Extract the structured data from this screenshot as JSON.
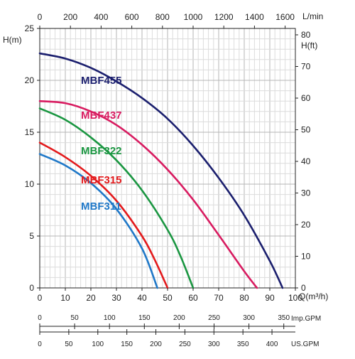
{
  "chart_data": {
    "type": "line",
    "x_range": [
      0,
      100
    ],
    "y_range": [
      0,
      25
    ],
    "x_ticks": [
      0,
      10,
      20,
      30,
      40,
      50,
      60,
      70,
      80,
      90,
      100
    ],
    "y_ticks": [
      0,
      5,
      10,
      15,
      20,
      25
    ],
    "xlabel": "Q(m³/h)",
    "ylabel": "H(m)",
    "top_axis": {
      "label": "L/min",
      "ticks": [
        0,
        200,
        400,
        600,
        800,
        1000,
        1200,
        1400,
        1600
      ]
    },
    "right_axis": {
      "label": "H(ft)",
      "ticks": [
        0,
        10,
        20,
        30,
        40,
        50,
        60,
        70,
        80
      ]
    },
    "imp_gpm_axis": {
      "label": "Imp.GPM",
      "ticks": [
        0,
        50,
        100,
        150,
        200,
        250,
        300,
        350
      ]
    },
    "us_gpm_axis": {
      "label": "US.GPM",
      "ticks": [
        0,
        50,
        100,
        150,
        200,
        250,
        300,
        350,
        400
      ]
    },
    "grid": true,
    "series": [
      {
        "name": "MBF455",
        "color": "#1b1f6e",
        "x": [
          0,
          10,
          20,
          30,
          40,
          50,
          60,
          70,
          80,
          90,
          95
        ],
        "y": [
          22.6,
          22.1,
          21.2,
          19.9,
          18.3,
          16.3,
          13.7,
          10.6,
          7.0,
          2.6,
          0
        ]
      },
      {
        "name": "MBF437",
        "color": "#d81b60",
        "x": [
          0,
          10,
          20,
          30,
          40,
          50,
          60,
          70,
          80,
          85
        ],
        "y": [
          18.0,
          17.8,
          17.0,
          15.7,
          13.8,
          11.4,
          8.5,
          5.1,
          1.6,
          0
        ]
      },
      {
        "name": "MBF322",
        "color": "#1a9641",
        "x": [
          0,
          10,
          20,
          30,
          40,
          50,
          55,
          60
        ],
        "y": [
          17.3,
          16.2,
          14.5,
          12.3,
          9.4,
          5.6,
          3.1,
          0
        ]
      },
      {
        "name": "MBF315",
        "color": "#e31a1c",
        "x": [
          0,
          10,
          20,
          30,
          40,
          45,
          50
        ],
        "y": [
          14.0,
          12.6,
          10.8,
          8.4,
          5.0,
          2.7,
          0
        ]
      },
      {
        "name": "MBF311",
        "color": "#1f78c8",
        "x": [
          0,
          10,
          20,
          30,
          40,
          46
        ],
        "y": [
          12.9,
          11.8,
          10.1,
          7.6,
          3.8,
          0
        ]
      }
    ]
  }
}
